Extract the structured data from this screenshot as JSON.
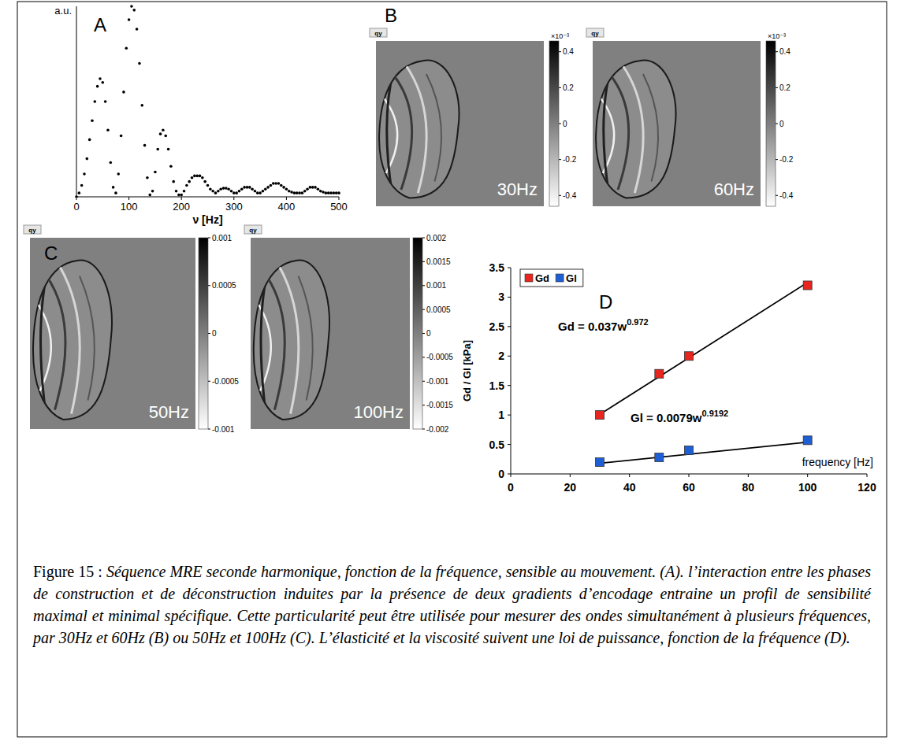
{
  "chart_data": [
    {
      "type": "scatter",
      "label": "A",
      "x_label": "ν [Hz]",
      "y_label": "a.u.",
      "x": [
        0,
        5,
        10,
        15,
        20,
        25,
        30,
        35,
        40,
        45,
        50,
        55,
        60,
        65,
        70,
        75,
        80,
        85,
        90,
        95,
        100,
        105,
        110,
        115,
        120,
        125,
        130,
        135,
        140,
        145,
        150,
        155,
        160,
        165,
        170,
        175,
        180,
        185,
        190,
        195,
        200,
        205,
        210,
        215,
        220,
        225,
        230,
        235,
        240,
        245,
        250,
        255,
        260,
        265,
        270,
        275,
        280,
        285,
        290,
        295,
        300,
        305,
        310,
        315,
        320,
        325,
        330,
        335,
        340,
        345,
        350,
        355,
        360,
        365,
        370,
        375,
        380,
        385,
        390,
        395,
        400,
        405,
        410,
        415,
        420,
        425,
        430,
        435,
        440,
        445,
        450,
        455,
        460,
        465,
        470,
        475,
        480,
        485,
        490,
        495,
        500
      ],
      "values": [
        0,
        0.02,
        0.06,
        0.12,
        0.2,
        0.3,
        0.4,
        0.5,
        0.58,
        0.62,
        0.6,
        0.5,
        0.35,
        0.18,
        0.05,
        0.02,
        0.12,
        0.32,
        0.55,
        0.78,
        0.93,
        1,
        0.98,
        0.88,
        0.7,
        0.48,
        0.27,
        0.1,
        0.01,
        0.03,
        0.13,
        0.25,
        0.33,
        0.35,
        0.32,
        0.25,
        0.16,
        0.08,
        0.03,
        0.01,
        0.01,
        0.03,
        0.06,
        0.08,
        0.1,
        0.11,
        0.11,
        0.11,
        0.1,
        0.08,
        0.06,
        0.04,
        0.03,
        0.02,
        0.03,
        0.04,
        0.045,
        0.045,
        0.04,
        0.03,
        0.02,
        0.02,
        0.03,
        0.04,
        0.05,
        0.05,
        0.05,
        0.04,
        0.03,
        0.02,
        0.02,
        0.03,
        0.04,
        0.05,
        0.06,
        0.07,
        0.07,
        0.07,
        0.06,
        0.05,
        0.04,
        0.03,
        0.025,
        0.02,
        0.02,
        0.02,
        0.02,
        0.03,
        0.04,
        0.05,
        0.05,
        0.05,
        0.04,
        0.03,
        0.025,
        0.02,
        0.02,
        0.02,
        0.02,
        0.02,
        0.02
      ],
      "xlim": [
        0,
        500
      ],
      "ylim": [
        0,
        1
      ],
      "xticks": [
        0,
        100,
        200,
        300,
        400,
        500
      ],
      "tick_labels": "x",
      "marker": "dot",
      "color": "#000000"
    },
    {
      "type": "scatter",
      "label": "D",
      "x_label": "frequency [Hz]",
      "y_label": "Gd / Gl [kPa]",
      "x": [
        30,
        50,
        60,
        100
      ],
      "series": [
        {
          "name": "Gd",
          "color": "#e8251f",
          "marker": "square",
          "values": [
            1.0,
            1.7,
            2.0,
            3.2
          ],
          "fit": {
            "x": [
              30,
              100
            ],
            "values": [
              1.01,
              3.25
            ]
          },
          "equation": {
            "base": "Gd = 0.037w",
            "exponent": "0.972"
          }
        },
        {
          "name": "Gl",
          "color": "#1f5fd6",
          "marker": "square",
          "values": [
            0.2,
            0.28,
            0.4,
            0.57
          ],
          "fit": {
            "x": [
              30,
              100
            ],
            "values": [
              0.18,
              0.54
            ]
          },
          "equation": {
            "base": "Gl = 0.0079w",
            "exponent": "0.9192"
          }
        }
      ],
      "xlim": [
        0,
        120
      ],
      "ylim": [
        0,
        3.5
      ],
      "xticks": [
        0,
        20,
        40,
        60,
        80,
        100,
        120
      ],
      "yticks": [
        0,
        0.5,
        1,
        1.5,
        2,
        2.5,
        3,
        3.5
      ],
      "legend": "top-left",
      "grid": false
    }
  ],
  "maps": [
    {
      "label": "B",
      "items": [
        {
          "tag": "qy",
          "frequency_label": "30Hz",
          "colorbar": {
            "range": [
              -0.00046,
              0.00046
            ],
            "exponent_label": "×10⁻³",
            "ticks": [
              {
                "value": 0.0004,
                "label": "0.4"
              },
              {
                "value": 0.0002,
                "label": "0.2"
              },
              0,
              {
                "value": -0.0002,
                "label": "-0.2"
              },
              {
                "value": -0.0004,
                "label": "-0.4"
              }
            ]
          }
        },
        {
          "tag": "qy",
          "frequency_label": "60Hz",
          "colorbar": {
            "range": [
              -0.00046,
              0.00046
            ],
            "exponent_label": "×10⁻³",
            "ticks": [
              {
                "value": 0.0004,
                "label": "0.4"
              },
              {
                "value": 0.0002,
                "label": "0.2"
              },
              0,
              {
                "value": -0.0002,
                "label": "-0.2"
              },
              {
                "value": -0.0004,
                "label": "-0.4"
              }
            ]
          }
        }
      ]
    },
    {
      "label": "C",
      "items": [
        {
          "tag": "qy",
          "frequency_label": "50Hz",
          "colorbar": {
            "range": [
              -0.001,
              0.001
            ],
            "ticks": [
              0.001,
              0.0005,
              0,
              -0.0005,
              -0.001
            ]
          }
        },
        {
          "tag": "qy",
          "frequency_label": "100Hz",
          "colorbar": {
            "range": [
              -0.002,
              0.002
            ],
            "ticks": [
              0.002,
              0.0015,
              0.001,
              0.0005,
              0,
              -0.0005,
              -0.001,
              -0.0015,
              -0.002
            ]
          }
        }
      ]
    }
  ],
  "caption": {
    "label": "Figure 15 : ",
    "text": "Séquence MRE seconde harmonique, fonction de la fréquence, sensible au mouvement. (A). l’interaction entre les phases de construction et de déconstruction induites par la présence de deux gradients d’encodage entraine un profil de sensibilité maximal et minimal spécifique. Cette particularité peut être utilisée pour mesurer des ondes simultanément à plusieurs fréquences, par 30Hz et 60Hz (B) ou 50Hz et 100Hz (C). L’élasticité et la viscosité suivent une loi de puissance, fonction de la fréquence (D)."
  }
}
